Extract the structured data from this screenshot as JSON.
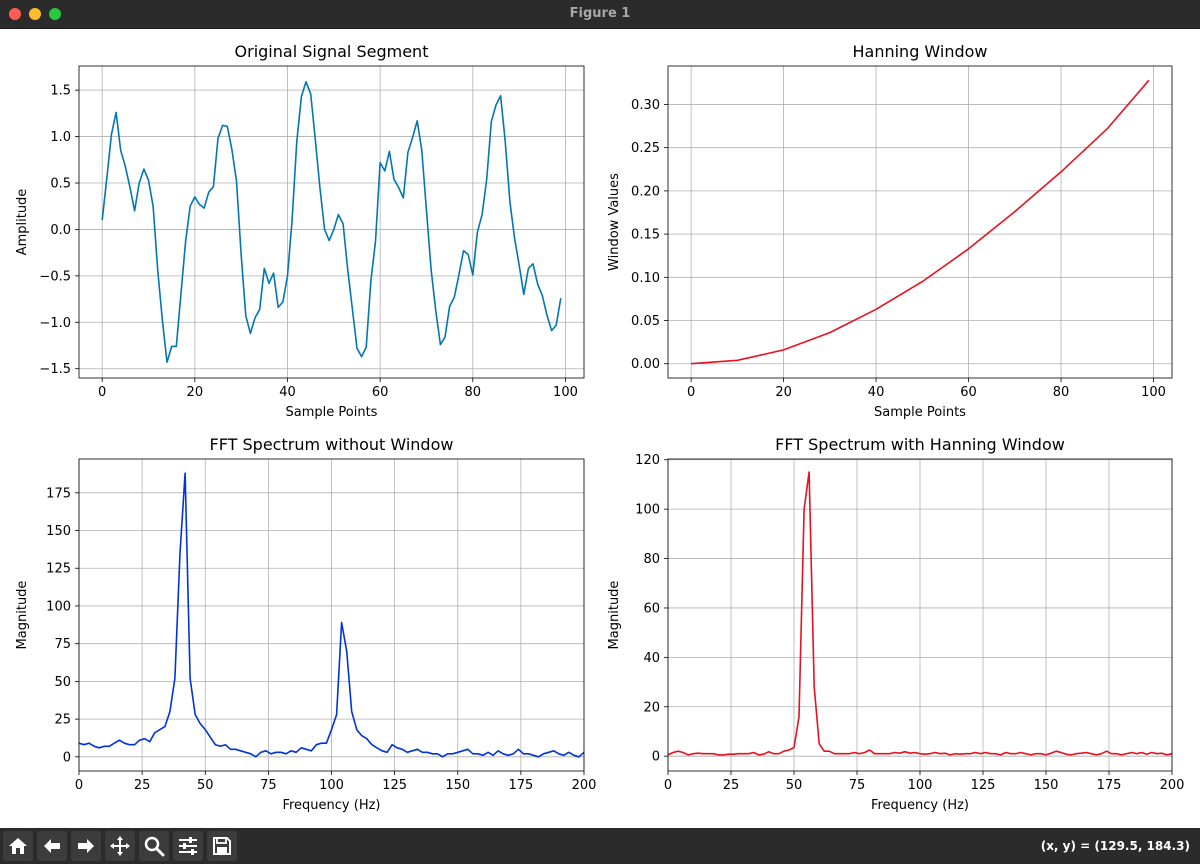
{
  "window": {
    "title": "Figure 1"
  },
  "toolbar": {
    "buttons": [
      "home-icon",
      "back-arrow-icon",
      "forward-arrow-icon",
      "pan-icon",
      "zoom-icon",
      "subplots-icon",
      "save-icon"
    ],
    "coords": "(x, y) = (129.5, 184.3)"
  },
  "chart_data": [
    {
      "type": "line",
      "title": "Original Signal Segment",
      "xlabel": "Sample Points",
      "ylabel": "Amplitude",
      "xlim": [
        -5,
        104
      ],
      "ylim": [
        -1.6,
        1.76
      ],
      "xticks": [
        0,
        20,
        40,
        60,
        80,
        100
      ],
      "yticks": [
        -1.5,
        -1.0,
        -0.5,
        0.0,
        0.5,
        1.0,
        1.5
      ],
      "ytick_labels": [
        "−1.5",
        "−1.0",
        "−0.5",
        "0.0",
        "0.5",
        "1.0",
        "1.5"
      ],
      "grid": true,
      "color": "#0077b3",
      "x_start": 0,
      "values": [
        0.1,
        0.55,
        1.02,
        1.26,
        0.85,
        0.68,
        0.45,
        0.2,
        0.5,
        0.65,
        0.53,
        0.25,
        -0.45,
        -0.98,
        -1.43,
        -1.26,
        -1.26,
        -0.7,
        -0.13,
        0.25,
        0.35,
        0.27,
        0.23,
        0.4,
        0.46,
        0.98,
        1.12,
        1.11,
        0.86,
        0.52,
        -0.28,
        -0.93,
        -1.12,
        -0.95,
        -0.86,
        -0.42,
        -0.58,
        -0.47,
        -0.84,
        -0.78,
        -0.5,
        0.1,
        0.95,
        1.43,
        1.59,
        1.46,
        0.97,
        0.45,
        0.0,
        -0.12,
        0.0,
        0.16,
        0.06,
        -0.43,
        -0.85,
        -1.28,
        -1.37,
        -1.27,
        -0.55,
        -0.13,
        0.72,
        0.63,
        0.84,
        0.54,
        0.45,
        0.34,
        0.83,
        0.99,
        1.17,
        0.85,
        0.2,
        -0.43,
        -0.87,
        -1.24,
        -1.16,
        -0.83,
        -0.73,
        -0.49,
        -0.23,
        -0.27,
        -0.49,
        -0.03,
        0.16,
        0.54,
        1.16,
        1.34,
        1.44,
        0.95,
        0.3,
        -0.09,
        -0.38,
        -0.7,
        -0.42,
        -0.37,
        -0.59,
        -0.71,
        -0.92,
        -1.09,
        -1.03,
        -0.74
      ]
    },
    {
      "type": "line",
      "title": "Hanning Window",
      "xlabel": "Sample Points",
      "ylabel": "Window Values",
      "xlim": [
        -5,
        104
      ],
      "ylim": [
        -0.0165,
        0.3445
      ],
      "xticks": [
        0,
        20,
        40,
        60,
        80,
        100
      ],
      "yticks": [
        0.0,
        0.05,
        0.1,
        0.15,
        0.2,
        0.25,
        0.3
      ],
      "ytick_labels": [
        "0.00",
        "0.05",
        "0.10",
        "0.15",
        "0.20",
        "0.25",
        "0.30"
      ],
      "grid": true,
      "color": "#e8111f",
      "x": [
        0,
        10,
        20,
        30,
        40,
        50,
        60,
        70,
        80,
        90,
        99
      ],
      "values": [
        0.0,
        0.004,
        0.016,
        0.036,
        0.063,
        0.095,
        0.133,
        0.176,
        0.222,
        0.272,
        0.328
      ]
    },
    {
      "type": "line",
      "title": "FFT Spectrum without Window",
      "xlabel": "Frequency (Hz)",
      "ylabel": "Magnitude",
      "xlim": [
        0,
        200
      ],
      "ylim": [
        -9.4,
        197.4
      ],
      "xticks": [
        0,
        25,
        50,
        75,
        100,
        125,
        150,
        175,
        200
      ],
      "yticks": [
        0,
        25,
        50,
        75,
        100,
        125,
        150,
        175
      ],
      "ytick_labels": [
        "0",
        "25",
        "50",
        "75",
        "100",
        "125",
        "150",
        "175"
      ],
      "grid": true,
      "color": "#0033dd",
      "x_start": 0,
      "x_step": 2,
      "values": [
        9,
        8,
        9,
        7,
        6,
        7,
        7,
        9,
        11,
        9,
        8,
        8,
        11,
        12,
        10,
        16,
        18,
        20,
        30,
        52,
        135,
        188,
        52,
        28,
        22,
        18,
        13,
        8,
        7,
        8,
        5,
        5,
        4,
        3,
        2,
        0,
        3,
        4,
        2,
        3,
        3,
        2,
        4,
        3,
        6,
        5,
        4,
        8,
        9,
        9,
        18,
        28,
        89,
        70,
        30,
        18,
        14,
        12,
        8,
        6,
        4,
        3,
        8,
        6,
        5,
        3,
        4,
        5,
        3,
        3,
        2,
        2,
        0,
        2,
        2,
        3,
        4,
        5,
        2,
        2,
        1,
        3,
        1,
        4,
        2,
        1,
        2,
        5,
        2,
        2,
        1,
        0,
        2,
        3,
        4,
        2,
        1,
        3,
        1,
        0,
        3
      ]
    },
    {
      "type": "line",
      "title": "FFT Spectrum with Hanning Window",
      "xlabel": "Frequency (Hz)",
      "ylabel": "Magnitude",
      "xlim": [
        0,
        200
      ],
      "ylim": [
        -6.0,
        120.3
      ],
      "xticks": [
        0,
        25,
        50,
        75,
        100,
        125,
        150,
        175,
        200
      ],
      "yticks": [
        0,
        20,
        40,
        60,
        80,
        100,
        120
      ],
      "ytick_labels": [
        "0",
        "20",
        "40",
        "60",
        "80",
        "100",
        "120"
      ],
      "grid": true,
      "color": "#e8111f",
      "x_start": 0,
      "x_step": 2,
      "values": [
        0.5,
        1.5,
        2,
        1.5,
        0.5,
        1,
        1.2,
        1,
        1,
        1,
        0.5,
        0.5,
        0.8,
        0.8,
        1,
        1,
        1,
        1.5,
        0.5,
        0.8,
        1.8,
        1,
        1,
        2,
        2.5,
        3.5,
        16,
        100,
        115,
        28,
        5,
        2,
        2,
        1,
        1,
        1,
        1,
        1.5,
        1,
        1.5,
        2.5,
        1,
        1,
        1,
        1,
        1.5,
        1.2,
        1.8,
        1.2,
        1.5,
        1,
        0.8,
        1,
        1.5,
        1,
        1.2,
        0.5,
        1,
        0.8,
        1,
        1,
        1.5,
        1,
        1.5,
        1,
        1,
        0.5,
        1.5,
        1,
        1,
        1.5,
        1,
        0.5,
        1,
        1,
        0.5,
        1.2,
        2,
        1.5,
        0.8,
        0.5,
        1,
        1.2,
        1.5,
        1,
        0.5,
        1,
        2,
        1,
        1,
        0.5,
        1,
        1.5,
        1,
        1.5,
        0.8,
        1.5,
        1,
        1.2,
        0.5,
        1
      ]
    }
  ]
}
